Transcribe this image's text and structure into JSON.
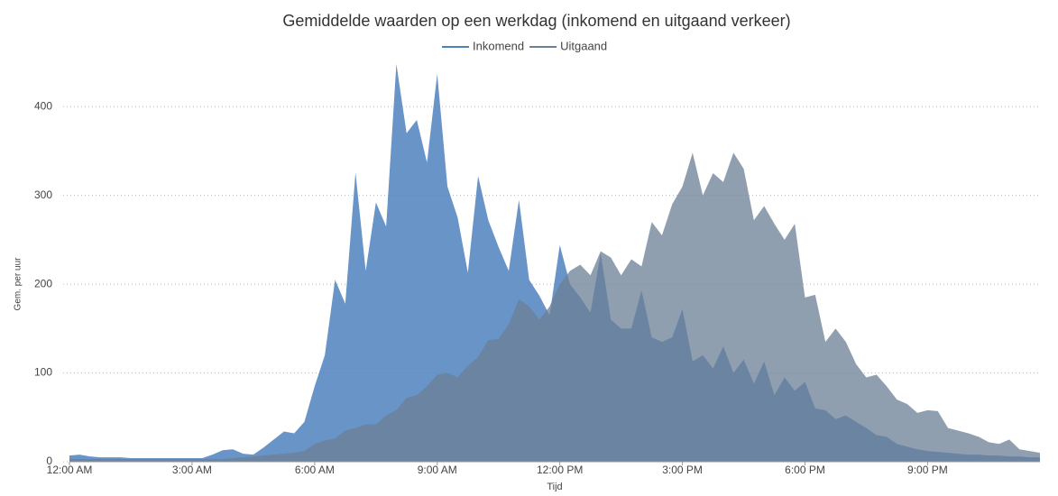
{
  "chart_data": {
    "type": "area",
    "title": "Gemiddelde waarden op een werkdag (inkomend en uitgaand verkeer)",
    "xlabel": "Tijd",
    "ylabel": "Gem. per uur",
    "x": [
      0,
      0.25,
      0.5,
      0.75,
      1,
      1.25,
      1.5,
      1.75,
      2,
      2.25,
      2.5,
      2.75,
      3,
      3.25,
      3.5,
      3.75,
      4,
      4.25,
      4.5,
      4.75,
      5,
      5.25,
      5.5,
      5.75,
      6,
      6.25,
      6.5,
      6.75,
      7,
      7.25,
      7.5,
      7.75,
      8,
      8.25,
      8.5,
      8.75,
      9,
      9.25,
      9.5,
      9.75,
      10,
      10.25,
      10.5,
      10.75,
      11,
      11.25,
      11.5,
      11.75,
      12,
      12.25,
      12.5,
      12.75,
      13,
      13.25,
      13.5,
      13.75,
      14,
      14.25,
      14.5,
      14.75,
      15,
      15.25,
      15.5,
      15.75,
      16,
      16.25,
      16.5,
      16.75,
      17,
      17.25,
      17.5,
      17.75,
      18,
      18.25,
      18.5,
      18.75,
      19,
      19.25,
      19.5,
      19.75,
      20,
      20.25,
      20.5,
      20.75,
      21,
      21.25,
      21.5,
      21.75,
      22,
      22.25,
      22.5,
      22.75,
      23,
      23.25,
      23.5,
      23.75
    ],
    "series": [
      {
        "name": "Inkomend",
        "color": "#4e81bd",
        "values": [
          7,
          8,
          6,
          5,
          5,
          5,
          4,
          4,
          4,
          4,
          4,
          4,
          4,
          4,
          8,
          13,
          14,
          9,
          8,
          16,
          25,
          34,
          32,
          45,
          85,
          120,
          205,
          178,
          326,
          215,
          292,
          265,
          448,
          370,
          385,
          337,
          437,
          310,
          275,
          213,
          322,
          272,
          242,
          215,
          295,
          205,
          187,
          165,
          244,
          200,
          185,
          168,
          235,
          160,
          150,
          150,
          193,
          140,
          135,
          140,
          172,
          113,
          120,
          105,
          130,
          100,
          115,
          88,
          113,
          75,
          95,
          80,
          90,
          60,
          58,
          48,
          52,
          45,
          38,
          30,
          28,
          20,
          17,
          14,
          12,
          11,
          10,
          9,
          8,
          8,
          7,
          7,
          6,
          6,
          5,
          5
        ]
      },
      {
        "name": "Uitgaand",
        "color": "#6b7f95",
        "values": [
          3,
          3,
          3,
          3,
          3,
          3,
          3,
          3,
          3,
          3,
          3,
          3,
          3,
          3,
          3,
          3,
          4,
          5,
          6,
          7,
          8,
          9,
          10,
          12,
          20,
          24,
          26,
          35,
          38,
          42,
          42,
          52,
          58,
          72,
          75,
          85,
          98,
          100,
          95,
          108,
          118,
          137,
          138,
          155,
          183,
          175,
          160,
          175,
          200,
          215,
          222,
          210,
          237,
          230,
          210,
          228,
          220,
          270,
          255,
          290,
          310,
          348,
          300,
          325,
          315,
          348,
          330,
          272,
          288,
          268,
          250,
          268,
          185,
          188,
          135,
          150,
          135,
          110,
          95,
          98,
          85,
          70,
          65,
          55,
          58,
          57,
          38,
          35,
          32,
          28,
          22,
          20,
          25,
          14,
          12,
          10
        ]
      }
    ],
    "xlim": [
      0,
      23.75
    ],
    "xticks": [
      {
        "value": 0,
        "label": "12:00 AM"
      },
      {
        "value": 3,
        "label": "3:00 AM"
      },
      {
        "value": 6,
        "label": "6:00 AM"
      },
      {
        "value": 9,
        "label": "9:00 AM"
      },
      {
        "value": 12,
        "label": "12:00 PM"
      },
      {
        "value": 15,
        "label": "3:00 PM"
      },
      {
        "value": 18,
        "label": "6:00 PM"
      },
      {
        "value": 21,
        "label": "9:00 PM"
      }
    ],
    "ylim": [
      0,
      450
    ],
    "yticks": [
      0,
      100,
      200,
      300,
      400
    ],
    "grid": true,
    "legend": "top"
  }
}
